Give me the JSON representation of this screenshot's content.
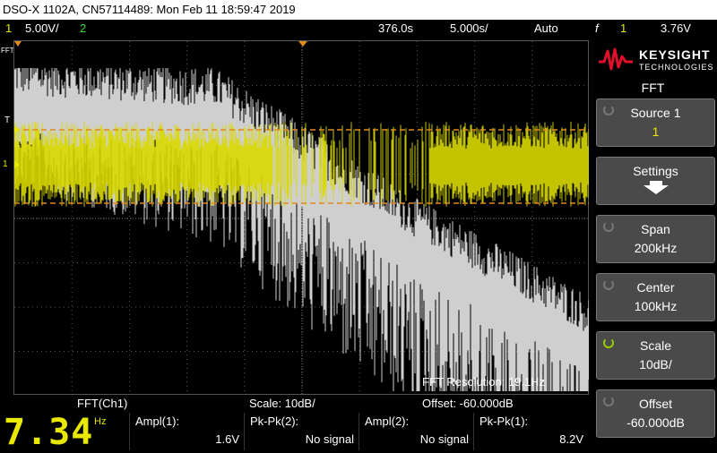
{
  "title_bar": "DSO-X 1102A, CN57114489: Mon Feb 11 18:59:47 2019",
  "top_bar": {
    "ch1_num": "1",
    "ch1_scale": "5.00V/",
    "ch2_num": "2",
    "time_pos": "376.0s",
    "time_scale": "5.000s/",
    "trigger_mode": "Auto",
    "trig_icon": "f",
    "trig_ch": "1",
    "trig_level": "3.76V"
  },
  "left_markers": {
    "fft": "FFT",
    "t": "T",
    "ch1": "1"
  },
  "screen": {
    "fft_resolution": "FFT Resolution: 19.1Hz"
  },
  "bottom_info": {
    "source": "FFT(Ch1)",
    "scale": "Scale: 10dB/",
    "offset": "Offset: -60.000dB"
  },
  "counter": {
    "value": "7.34",
    "unit": "Hz"
  },
  "measurements": [
    {
      "label": "Ampl(1):",
      "value": "1.6V"
    },
    {
      "label": "Pk-Pk(2):",
      "value": "No signal"
    },
    {
      "label": "Ampl(2):",
      "value": "No signal"
    },
    {
      "label": "Pk-Pk(1):",
      "value": "8.2V"
    }
  ],
  "logo": {
    "brand": "KEYSIGHT",
    "sub": "TECHNOLOGIES"
  },
  "menu": {
    "title": "FFT",
    "buttons": [
      {
        "label": "Source 1",
        "value": "1"
      },
      {
        "label": "Settings",
        "value": ""
      },
      {
        "label": "Span",
        "value": "200kHz"
      },
      {
        "label": "Center",
        "value": "100kHz"
      },
      {
        "label": "Scale",
        "value": "10dB/"
      },
      {
        "label": "Offset",
        "value": "-60.000dB"
      }
    ]
  },
  "colors": {
    "ch1": "#e8e800",
    "ch2": "#33dd33",
    "fft_trace": "#cccccc",
    "cursor": "#e08a20",
    "button_bg": "#4a4a4a",
    "accent_knob": "#99cc00"
  }
}
